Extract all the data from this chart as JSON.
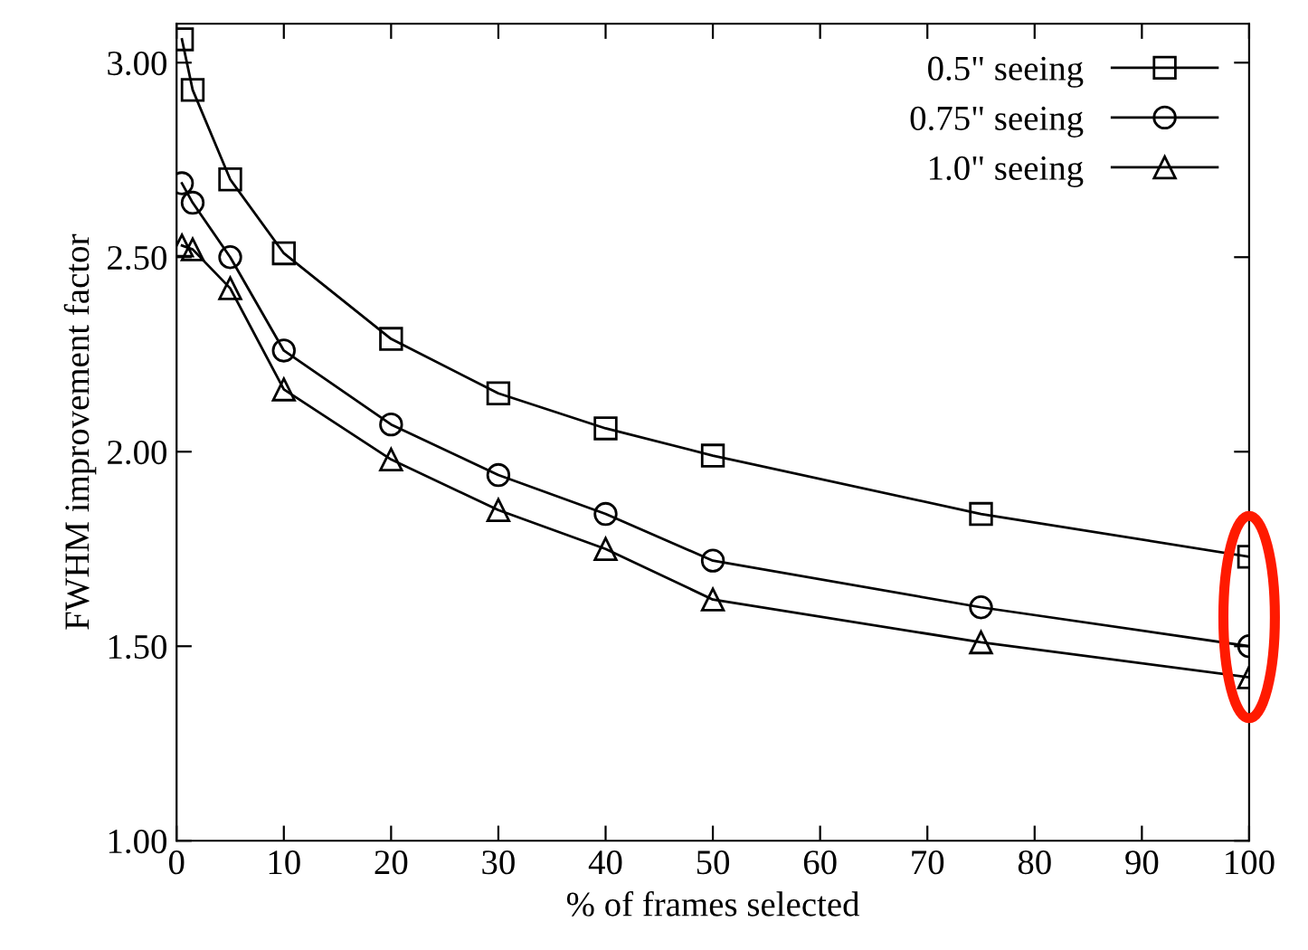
{
  "chart_data": {
    "type": "line",
    "xlabel": "% of frames selected",
    "ylabel": "FWHM improvement factor",
    "x": [
      0.5,
      1.5,
      5,
      10,
      20,
      30,
      40,
      50,
      75,
      100
    ],
    "series": [
      {
        "name": "0.5\" seeing",
        "color": "#000000",
        "marker": "square",
        "values": [
          3.06,
          2.93,
          2.7,
          2.51,
          2.29,
          2.15,
          2.06,
          1.99,
          1.84,
          1.73
        ]
      },
      {
        "name": "0.75\" seeing",
        "color": "#000000",
        "marker": "circle",
        "values": [
          2.69,
          2.64,
          2.5,
          2.26,
          2.07,
          1.94,
          1.84,
          1.72,
          1.6,
          1.5
        ]
      },
      {
        "name": "1.0\" seeing",
        "color": "#000000",
        "marker": "triangle",
        "values": [
          2.53,
          2.52,
          2.42,
          2.16,
          1.98,
          1.85,
          1.75,
          1.62,
          1.51,
          1.42
        ]
      }
    ],
    "xlim": [
      0,
      100
    ],
    "xticks": [
      0,
      10,
      20,
      30,
      40,
      50,
      60,
      70,
      80,
      90,
      100
    ],
    "ylim": [
      1.0,
      3.1
    ],
    "yticks": [
      {
        "value": 1.0,
        "label": "1.00"
      },
      {
        "value": 1.5,
        "label": "1.50"
      },
      {
        "value": 2.0,
        "label": "2.00"
      },
      {
        "value": 2.5,
        "label": "2.50"
      },
      {
        "value": 3.0,
        "label": "3.00"
      }
    ],
    "legend": "top right",
    "line_style": "solid"
  }
}
